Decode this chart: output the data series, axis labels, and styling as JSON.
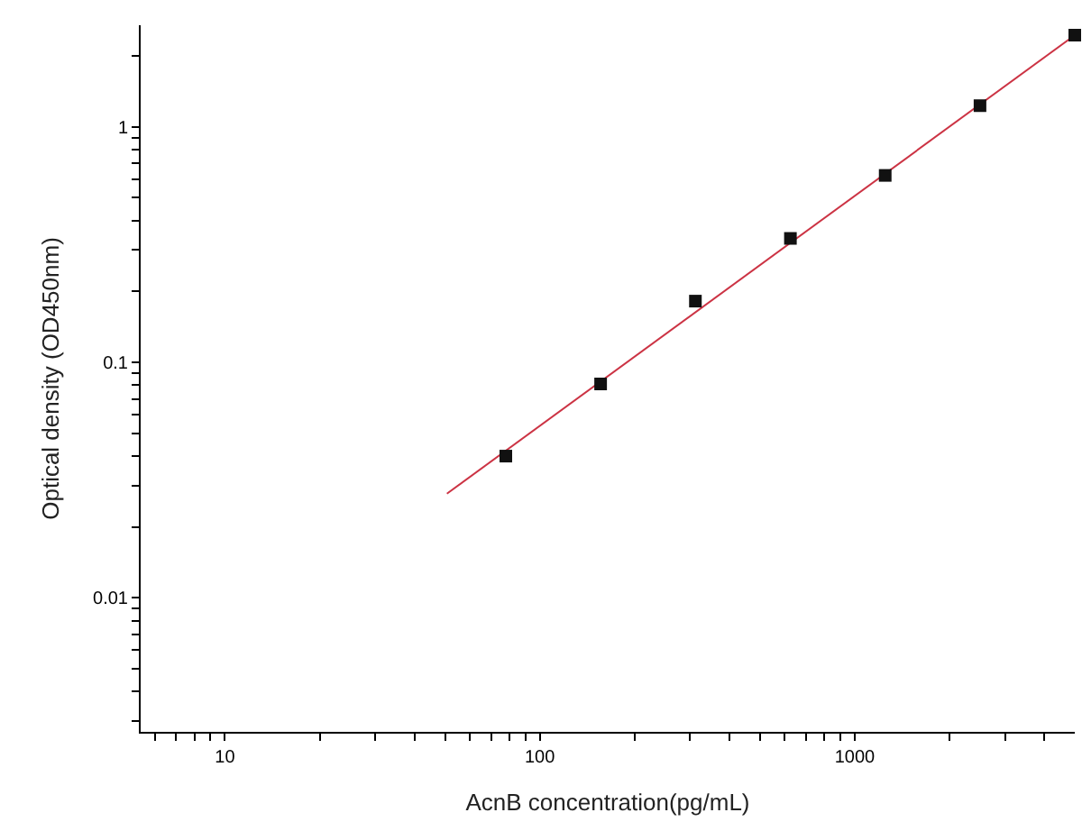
{
  "chart_data": {
    "type": "scatter",
    "xlabel": "AcnB concentration(pg/mL)",
    "ylabel": "Optical density (OD450nm)",
    "log": "xy",
    "marker": "square",
    "xlim": [
      5.4,
      5000
    ],
    "ylim": [
      0.0027,
      2.7
    ],
    "xticks": [
      {
        "value": 6,
        "label": null
      },
      {
        "value": 7,
        "label": null
      },
      {
        "value": 8,
        "label": null
      },
      {
        "value": 9,
        "label": null
      },
      10,
      {
        "value": 20,
        "label": null
      },
      {
        "value": 30,
        "label": null
      },
      {
        "value": 40,
        "label": null
      },
      {
        "value": 50,
        "label": null
      },
      {
        "value": 60,
        "label": null
      },
      {
        "value": 70,
        "label": null
      },
      {
        "value": 80,
        "label": null
      },
      {
        "value": 90,
        "label": null
      },
      100,
      {
        "value": 200,
        "label": null
      },
      {
        "value": 300,
        "label": null
      },
      {
        "value": 400,
        "label": null
      },
      {
        "value": 500,
        "label": null
      },
      {
        "value": 600,
        "label": null
      },
      {
        "value": 700,
        "label": null
      },
      {
        "value": 800,
        "label": null
      },
      {
        "value": 900,
        "label": null
      },
      1000,
      {
        "value": 2000,
        "label": null
      },
      {
        "value": 3000,
        "label": null
      },
      {
        "value": 4000,
        "label": null
      }
    ],
    "yticks": [
      {
        "value": 0.003,
        "label": null
      },
      {
        "value": 0.004,
        "label": null
      },
      {
        "value": 0.005,
        "label": null
      },
      {
        "value": 0.006,
        "label": null
      },
      {
        "value": 0.007,
        "label": null
      },
      {
        "value": 0.008,
        "label": null
      },
      {
        "value": 0.009,
        "label": null
      },
      0.01,
      {
        "value": 0.02,
        "label": null
      },
      {
        "value": 0.03,
        "label": null
      },
      {
        "value": 0.04,
        "label": null
      },
      {
        "value": 0.05,
        "label": null
      },
      {
        "value": 0.06,
        "label": null
      },
      {
        "value": 0.07,
        "label": null
      },
      {
        "value": 0.08,
        "label": null
      },
      {
        "value": 0.09,
        "label": null
      },
      0.1,
      {
        "value": 0.2,
        "label": null
      },
      {
        "value": 0.3,
        "label": null
      },
      {
        "value": 0.4,
        "label": null
      },
      {
        "value": 0.5,
        "label": null
      },
      {
        "value": 0.6,
        "label": null
      },
      {
        "value": 0.7,
        "label": null
      },
      {
        "value": 0.8,
        "label": null
      },
      {
        "value": 0.9,
        "label": null
      },
      1,
      {
        "value": 2,
        "label": null
      }
    ],
    "series": [
      {
        "type": "line",
        "color": "#cc3344",
        "marker": "none",
        "x": [
          50.7,
          5000
        ],
        "values": [
          0.0277,
          2.45
        ]
      },
      {
        "color": "#111111",
        "x": [
          78,
          156,
          312,
          625,
          1250,
          2500,
          5000
        ],
        "values": [
          0.04,
          0.081,
          0.182,
          0.336,
          0.622,
          1.23,
          2.45
        ]
      }
    ]
  }
}
